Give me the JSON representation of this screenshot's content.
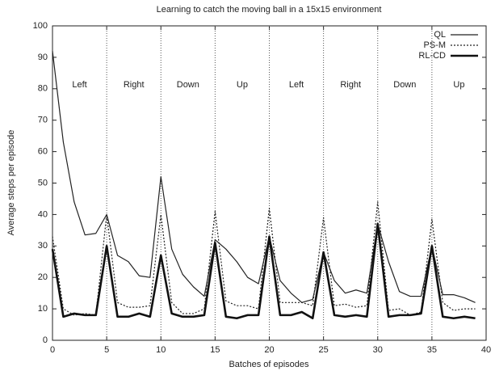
{
  "chart_data": {
    "type": "line",
    "title": "Learning to catch the moving ball in a 15x15 environment",
    "x_label": "Batches of episodes",
    "y_label": "Average steps per episode",
    "x": [
      0,
      1,
      2,
      3,
      4,
      5,
      6,
      7,
      8,
      9,
      10,
      11,
      12,
      13,
      14,
      15,
      16,
      17,
      18,
      19,
      20,
      21,
      22,
      23,
      24,
      25,
      26,
      27,
      28,
      29,
      30,
      31,
      32,
      33,
      34,
      35,
      36,
      37,
      38,
      39
    ],
    "series": [
      {
        "name": "QL",
        "color": "#222222",
        "style": "solid",
        "width": 1.2,
        "values": [
          92,
          63,
          44,
          33.5,
          34,
          40,
          27,
          25,
          20.5,
          20,
          52,
          29,
          21,
          17,
          14,
          32,
          29,
          25,
          20,
          18,
          33,
          19,
          15,
          12,
          13,
          28,
          19,
          15,
          16,
          15,
          37,
          25,
          15.5,
          14,
          14,
          30,
          14.5,
          14.5,
          13.5,
          12
        ]
      },
      {
        "name": "PS-M",
        "color": "#222222",
        "style": "dotted",
        "width": 1.2,
        "values": [
          33,
          10,
          8,
          8.5,
          8,
          40,
          12,
          10.5,
          10.5,
          11,
          40,
          12,
          8.5,
          8.5,
          10,
          41,
          12.5,
          11,
          11,
          10,
          42,
          12,
          12,
          12,
          11,
          39,
          11,
          11.5,
          10.5,
          11,
          44,
          9.5,
          10,
          8,
          9,
          38.5,
          12,
          9.5,
          10,
          10
        ]
      },
      {
        "name": "RL-CD",
        "color": "#111111",
        "style": "solid",
        "width": 2.6,
        "values": [
          29,
          7.5,
          8.5,
          8,
          8,
          30,
          7.5,
          7.5,
          8.5,
          7.5,
          27,
          8.5,
          7.5,
          7.5,
          8,
          31,
          7.5,
          7,
          8,
          8,
          33,
          8,
          8,
          9,
          7,
          28,
          8,
          7.5,
          8,
          7.5,
          37,
          7.5,
          8,
          8,
          8.5,
          30,
          7.5,
          7,
          7.5,
          7
        ]
      }
    ],
    "xlim": [
      0,
      40
    ],
    "ylim": [
      0,
      100
    ],
    "xticks": [
      0,
      5,
      10,
      15,
      20,
      25,
      30,
      35,
      40
    ],
    "yticks": [
      0,
      10,
      20,
      30,
      40,
      50,
      60,
      70,
      80,
      90,
      100
    ],
    "vlines": [
      5,
      10,
      15,
      20,
      25,
      30,
      35
    ],
    "phases": [
      "Left",
      "Right",
      "Down",
      "Up",
      "Left",
      "Right",
      "Down",
      "Up"
    ],
    "legend": "upper right"
  }
}
